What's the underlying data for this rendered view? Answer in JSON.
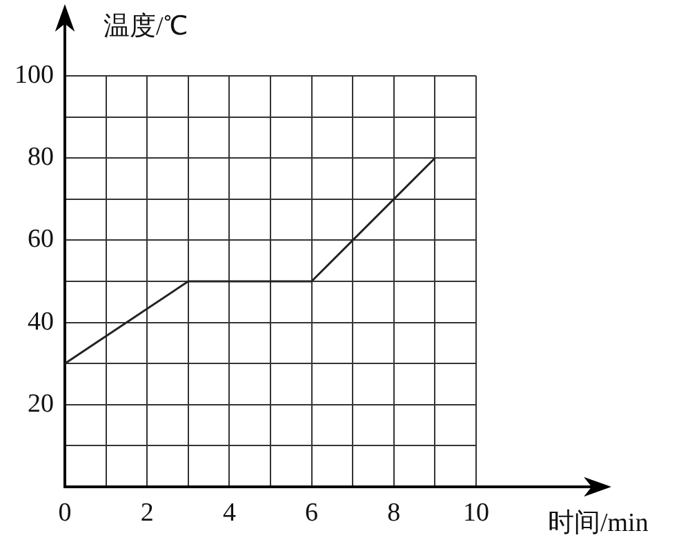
{
  "chart_data": {
    "type": "line",
    "xlabel": "时间/min",
    "ylabel": "温度/℃",
    "x": [
      0,
      3,
      6,
      9
    ],
    "series": [
      {
        "color": "#222222",
        "values": [
          30,
          50,
          50,
          80
        ]
      }
    ],
    "xlim": [
      0,
      10
    ],
    "ylim": [
      0,
      100
    ],
    "xticks": [
      0,
      {
        "value": 1,
        "label": null
      },
      2,
      {
        "value": 3,
        "label": null
      },
      4,
      {
        "value": 5,
        "label": null
      },
      6,
      {
        "value": 7,
        "label": null
      },
      8,
      {
        "value": 9,
        "label": null
      },
      10
    ],
    "yticks": [
      {
        "value": 0,
        "label": null
      },
      {
        "value": 10,
        "label": null
      },
      20,
      {
        "value": 30,
        "label": null
      },
      40,
      {
        "value": 50,
        "label": null
      },
      60,
      {
        "value": 70,
        "label": null
      },
      80,
      {
        "value": 90,
        "label": null
      },
      100
    ],
    "grid": true,
    "legend": false,
    "marker": "none",
    "line_style": "solid"
  }
}
